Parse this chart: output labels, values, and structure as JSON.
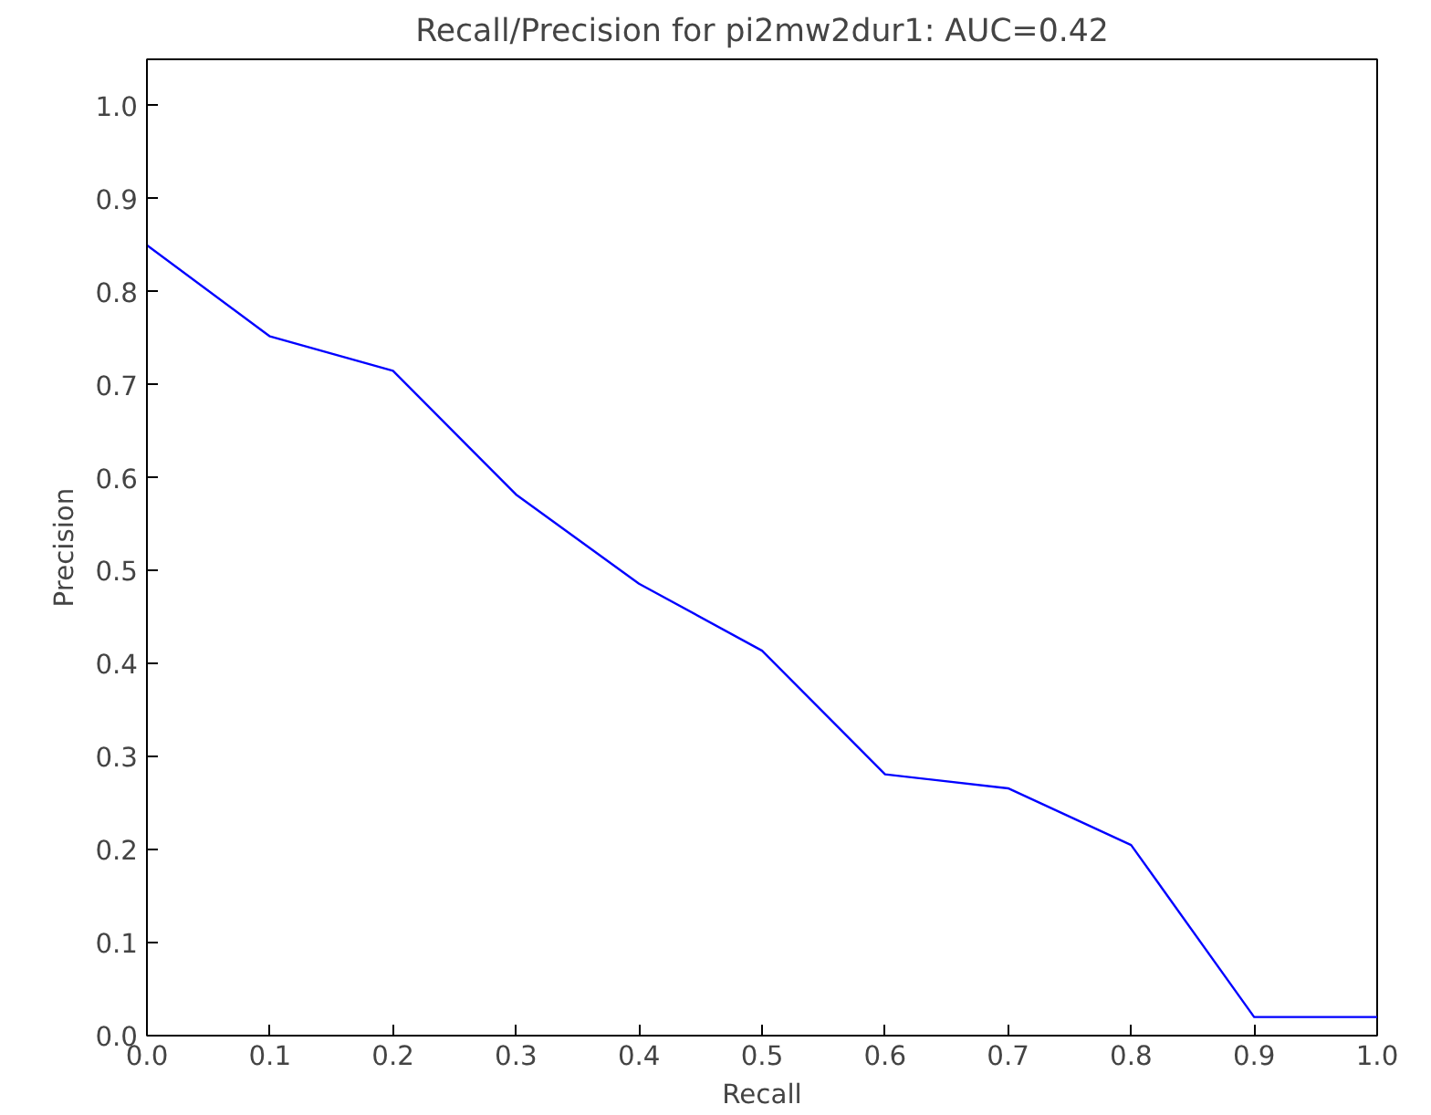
{
  "chart_data": {
    "type": "line",
    "title": "Recall/Precision for pi2mw2dur1: AUC=0.42",
    "xlabel": "Recall",
    "ylabel": "Precision",
    "x": [
      0.0,
      0.1,
      0.2,
      0.3,
      0.4,
      0.5,
      0.6,
      0.7,
      0.8,
      0.9,
      1.0
    ],
    "series": [
      {
        "color": "#0000ff",
        "values": [
          0.85,
          0.752,
          0.715,
          0.582,
          0.486,
          0.414,
          0.281,
          0.266,
          0.205,
          0.02,
          0.02
        ]
      }
    ],
    "xlim": [
      0.0,
      1.0
    ],
    "ylim": [
      0.0,
      1.05
    ],
    "xticks": [
      {
        "value": 0.0,
        "label": "0.0"
      },
      {
        "value": 0.1,
        "label": "0.1"
      },
      {
        "value": 0.2,
        "label": "0.2"
      },
      {
        "value": 0.3,
        "label": "0.3"
      },
      {
        "value": 0.4,
        "label": "0.4"
      },
      {
        "value": 0.5,
        "label": "0.5"
      },
      {
        "value": 0.6,
        "label": "0.6"
      },
      {
        "value": 0.7,
        "label": "0.7"
      },
      {
        "value": 0.8,
        "label": "0.8"
      },
      {
        "value": 0.9,
        "label": "0.9"
      },
      {
        "value": 1.0,
        "label": "1.0"
      }
    ],
    "yticks": [
      {
        "value": 0.0,
        "label": "0.0"
      },
      {
        "value": 0.1,
        "label": "0.1"
      },
      {
        "value": 0.2,
        "label": "0.2"
      },
      {
        "value": 0.3,
        "label": "0.3"
      },
      {
        "value": 0.4,
        "label": "0.4"
      },
      {
        "value": 0.5,
        "label": "0.5"
      },
      {
        "value": 0.6,
        "label": "0.6"
      },
      {
        "value": 0.7,
        "label": "0.7"
      },
      {
        "value": 0.8,
        "label": "0.8"
      },
      {
        "value": 0.9,
        "label": "0.9"
      },
      {
        "value": 1.0,
        "label": "1.0"
      }
    ],
    "grid": false,
    "marker": "none",
    "line_style": "solid"
  }
}
